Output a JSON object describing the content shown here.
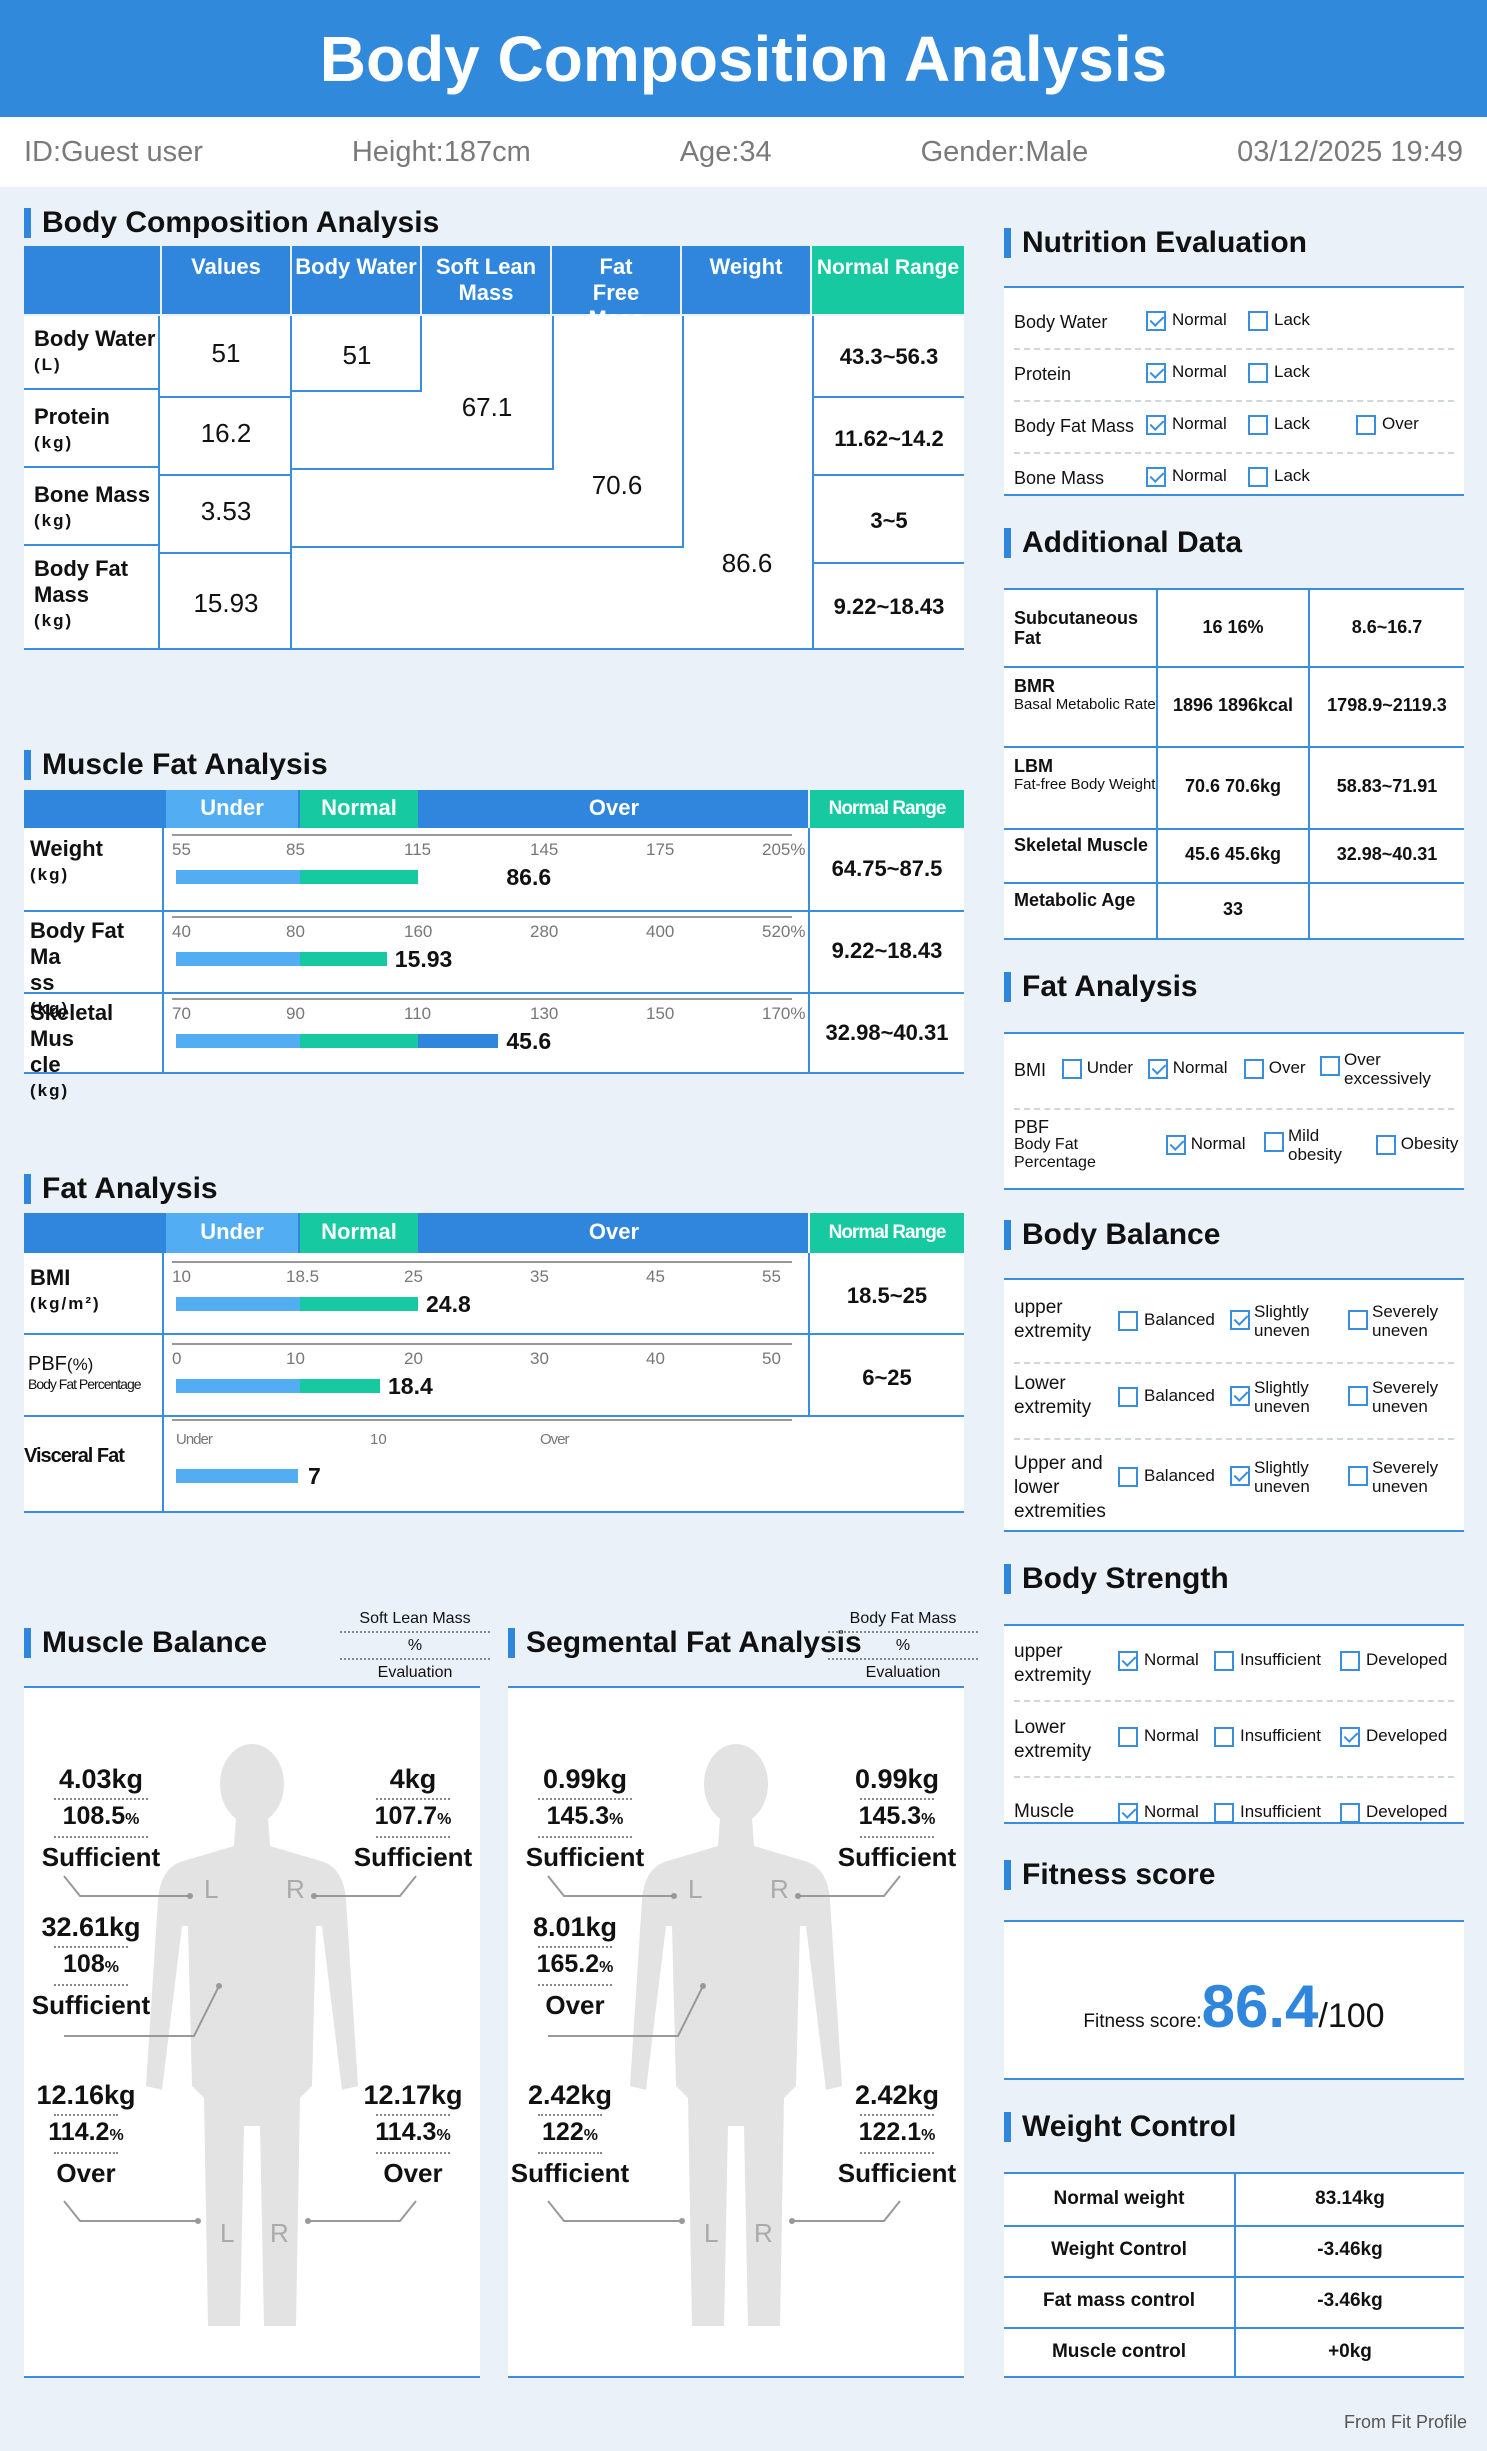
{
  "header": {
    "title": "Body Composition Analysis"
  },
  "info": {
    "id": "ID:Guest user",
    "height": "Height:187cm",
    "age": "Age:34",
    "gender": "Gender:Male",
    "datetime": "03/12/2025 19:49"
  },
  "body_comp": {
    "title": "Body Composition Analysis",
    "headers": {
      "values": "Values",
      "body_water": "Body Water",
      "soft_lean_mass": "Soft Lean Mass",
      "fat_free_mass": "Fat Free Mass",
      "weight": "Weight",
      "normal_range": "Normal Range"
    },
    "rows": [
      {
        "label": "Body Water",
        "unit": "(L)",
        "value": "51",
        "range": "43.3~56.3"
      },
      {
        "label": "Protein",
        "unit": "(kg)",
        "value": "16.2",
        "range": "11.62~14.2"
      },
      {
        "label": "Bone Mass",
        "unit": "(kg)",
        "value": "3.53",
        "range": "3~5"
      },
      {
        "label": "Body Fat Mass",
        "unit": "(kg)",
        "value": "15.93",
        "range": "9.22~18.43"
      }
    ],
    "body_water_total": "51",
    "soft_lean_total": "67.1",
    "fat_free_total": "70.6",
    "weight_total": "86.6"
  },
  "muscle_fat": {
    "title": "Muscle Fat Analysis",
    "head": {
      "under": "Under",
      "normal": "Normal",
      "over": "Over",
      "range": "Normal Range"
    },
    "rows": [
      {
        "label1": "Weight",
        "label2": "",
        "unit": "(kg)",
        "ticks": [
          "55",
          "85",
          "115",
          "145",
          "175",
          "205%"
        ],
        "value": "86.6",
        "range": "64.75~87.5",
        "fill": 0.52,
        "over": false
      },
      {
        "label1": "Body Fat Ma",
        "label2": "ss",
        "unit": "(kg)",
        "ticks": [
          "40",
          "80",
          "160",
          "280",
          "400",
          "520%"
        ],
        "value": "15.93",
        "range": "9.22~18.43",
        "fill": 0.34,
        "over": false
      },
      {
        "label1": "Skeletal Mus",
        "label2": "cle",
        "unit": "(kg)",
        "ticks": [
          "70",
          "90",
          "110",
          "130",
          "150",
          "170%"
        ],
        "value": "45.6",
        "range": "32.98~40.31",
        "fill": 0.52,
        "over": true
      }
    ]
  },
  "fat_analysis_left": {
    "title": "Fat Analysis",
    "head": {
      "under": "Under",
      "normal": "Normal",
      "over": "Over",
      "range": "Normal Range"
    },
    "bmi": {
      "label": "BMI",
      "unit": "(kg/m²)",
      "ticks": [
        "10",
        "18.5",
        "25",
        "35",
        "45",
        "55"
      ],
      "value": "24.8",
      "range": "18.5~25"
    },
    "pbf": {
      "label": "PBF",
      "unit": "(%)",
      "sub": "Body Fat Percentage",
      "ticks": [
        "0",
        "10",
        "20",
        "30",
        "40",
        "50"
      ],
      "value": "18.4",
      "range": "6~25"
    },
    "visceral": {
      "label": "Visceral Fat",
      "ticks": [
        "Under",
        "10",
        "Over"
      ],
      "value": "7"
    }
  },
  "muscle_balance": {
    "title": "Muscle Balance",
    "legend": {
      "a": "Soft Lean Mass",
      "b": "%",
      "c": "Evaluation"
    },
    "left_arm": {
      "kg": "4.03kg",
      "pct": "108.5",
      "eval": "Sufficient"
    },
    "right_arm": {
      "kg": "4kg",
      "pct": "107.7",
      "eval": "Sufficient"
    },
    "trunk": {
      "kg": "32.61kg",
      "pct": "108",
      "eval": "Sufficient"
    },
    "left_leg": {
      "kg": "12.16kg",
      "pct": "114.2",
      "eval": "Over"
    },
    "right_leg": {
      "kg": "12.17kg",
      "pct": "114.3",
      "eval": "Over"
    }
  },
  "segmental_fat": {
    "title": "Segmental Fat Analysis",
    "legend": {
      "a": "Body Fat Mass",
      "b": "%",
      "c": "Evaluation"
    },
    "left_arm": {
      "kg": "0.99kg",
      "pct": "145.3",
      "eval": "Sufficient"
    },
    "right_arm": {
      "kg": "0.99kg",
      "pct": "145.3",
      "eval": "Sufficient"
    },
    "trunk": {
      "kg": "8.01kg",
      "pct": "165.2",
      "eval": "Over"
    },
    "left_leg": {
      "kg": "2.42kg",
      "pct": "122",
      "eval": "Sufficient"
    },
    "right_leg": {
      "kg": "2.42kg",
      "pct": "122.1",
      "eval": "Sufficient"
    }
  },
  "body_letters": {
    "l": "L",
    "r": "R",
    "pct_sign": "%"
  },
  "nutrition": {
    "title": "Nutrition Evaluation",
    "opts": {
      "normal": "Normal",
      "lack": "Lack",
      "over": "Over"
    },
    "rows": [
      {
        "label": "Body Water"
      },
      {
        "label": "Protein"
      },
      {
        "label": "Body Fat Mass"
      },
      {
        "label": "Bone Mass"
      }
    ]
  },
  "additional": {
    "title": "Additional Data",
    "rows": [
      {
        "label": "Subcutaneous Fat",
        "sub": "",
        "value": "16 16%",
        "range": "8.6~16.7"
      },
      {
        "label": "BMR",
        "sub": "Basal Metabolic Rate",
        "value": "1896 1896kcal",
        "range": "1798.9~2119.3"
      },
      {
        "label": "LBM",
        "sub": "Fat-free Body Weight",
        "value": "70.6 70.6kg",
        "range": "58.83~71.91"
      },
      {
        "label": "Skeletal Muscle",
        "sub": "",
        "value": "45.6 45.6kg",
        "range": "32.98~40.31"
      },
      {
        "label": "Metabolic Age",
        "sub": "",
        "value": "33",
        "range": ""
      }
    ]
  },
  "fat_right": {
    "title": "Fat Analysis",
    "bmi": {
      "label": "BMI",
      "under": "Under",
      "normal": "Normal",
      "over": "Over",
      "over_ex1": "Over",
      "over_ex2": "excessively"
    },
    "pbf": {
      "label": "PBF",
      "sub1": "Body Fat",
      "sub2": "Percentage",
      "normal": "Normal",
      "mild1": "Mild",
      "mild2": "obesity",
      "obesity": "Obesity"
    }
  },
  "balance": {
    "title": "Body Balance",
    "opts": {
      "balanced": "Balanced",
      "slightly1": "Slightly",
      "slightly2": "uneven",
      "severely1": "Severely",
      "severely2": "uneven"
    },
    "rows": [
      {
        "l1": "upper",
        "l2": "extremity",
        "l3": ""
      },
      {
        "l1": "Lower",
        "l2": "extremity",
        "l3": ""
      },
      {
        "l1": "Upper and",
        "l2": "lower",
        "l3": "extremities"
      }
    ]
  },
  "strength": {
    "title": "Body Strength",
    "opts": {
      "normal": "Normal",
      "insufficient": "Insufficient",
      "developed": "Developed"
    },
    "rows": [
      {
        "l1": "upper",
        "l2": "extremity"
      },
      {
        "l1": "Lower",
        "l2": "extremity"
      },
      {
        "l1": "Muscle",
        "l2": ""
      }
    ]
  },
  "fitness": {
    "title": "Fitness score",
    "label": "Fitness score:",
    "score": "86.4",
    "max": "/100"
  },
  "weight_control": {
    "title": "Weight Control",
    "rows": [
      {
        "label": "Normal weight",
        "value": "83.14kg"
      },
      {
        "label": "Weight Control",
        "value": "-3.46kg"
      },
      {
        "label": "Fat mass control",
        "value": "-3.46kg"
      },
      {
        "label": "Muscle control",
        "value": "+0kg"
      }
    ]
  },
  "footer": {
    "source": "From Fit Profile"
  }
}
